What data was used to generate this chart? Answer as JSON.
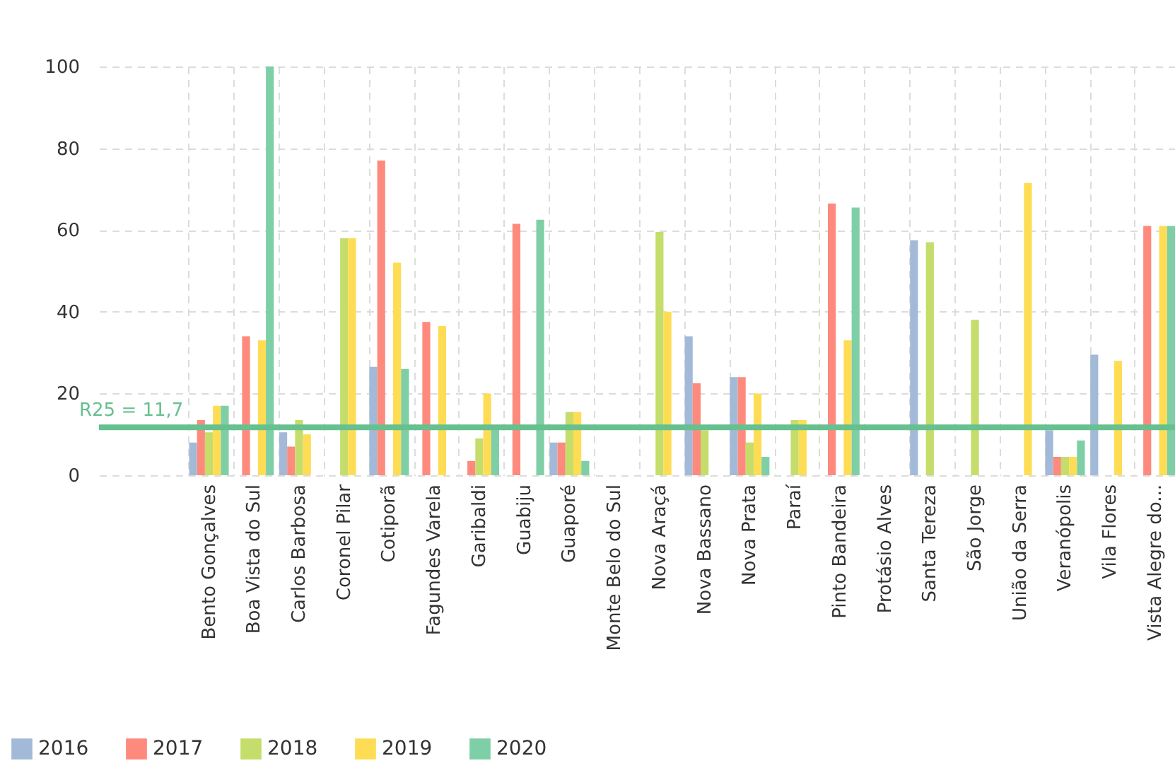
{
  "chart_data": {
    "type": "bar",
    "categories": [
      "Bento Gonçalves",
      "Boa Vista do Sul",
      "Carlos Barbosa",
      "Coronel Pilar",
      "Cotiporã",
      "Fagundes Varela",
      "Garibaldi",
      "Guabiju",
      "Guaporé",
      "Monte Belo do Sul",
      "Nova Araçá",
      "Nova Bassano",
      "Nova Prata",
      "Paraí",
      "Pinto Bandeira",
      "Protásio Alves",
      "Santa Tereza",
      "São Jorge",
      "União da Serra",
      "Veranópolis",
      "Vila Flores",
      "Vista Alegre do..."
    ],
    "series": [
      {
        "name": "2016",
        "color": "#a2bad8",
        "values": [
          8,
          null,
          10.5,
          null,
          26.5,
          null,
          null,
          null,
          8,
          null,
          null,
          34,
          24,
          null,
          null,
          null,
          57.5,
          null,
          null,
          11,
          29.5,
          null
        ]
      },
      {
        "name": "2017",
        "color": "#fe8a7d",
        "values": [
          13.5,
          34,
          7,
          null,
          77,
          37.5,
          3.5,
          61.5,
          8,
          null,
          null,
          22.5,
          24,
          null,
          66.5,
          null,
          null,
          null,
          null,
          4.5,
          null,
          61
        ]
      },
      {
        "name": "2018",
        "color": "#c5dd6a",
        "values": [
          10.5,
          null,
          13.5,
          58,
          null,
          null,
          9,
          null,
          15.5,
          null,
          59.5,
          11,
          8,
          13.5,
          null,
          null,
          57,
          38,
          null,
          4.5,
          null,
          null
        ]
      },
      {
        "name": "2019",
        "color": "#fedd55",
        "values": [
          17,
          33,
          10,
          58,
          52,
          36.5,
          20,
          null,
          15.5,
          null,
          40,
          null,
          20,
          13.5,
          33,
          null,
          null,
          null,
          71.5,
          4.5,
          28,
          61
        ]
      },
      {
        "name": "2020",
        "color": "#7fcfa6",
        "values": [
          17,
          100,
          null,
          null,
          26,
          null,
          11.5,
          62.5,
          3.5,
          null,
          null,
          null,
          4.5,
          null,
          65.5,
          null,
          null,
          null,
          null,
          8.5,
          null,
          61
        ]
      }
    ],
    "ylim": [
      0,
      100
    ],
    "yticks": [
      0,
      20,
      40,
      60,
      80,
      100
    ],
    "grid": true,
    "legend": "bottom left",
    "ref_lines": [
      {
        "axis": "y",
        "value": 11.7,
        "label": "R25 = 11,7",
        "color": "#66c08f"
      }
    ]
  }
}
